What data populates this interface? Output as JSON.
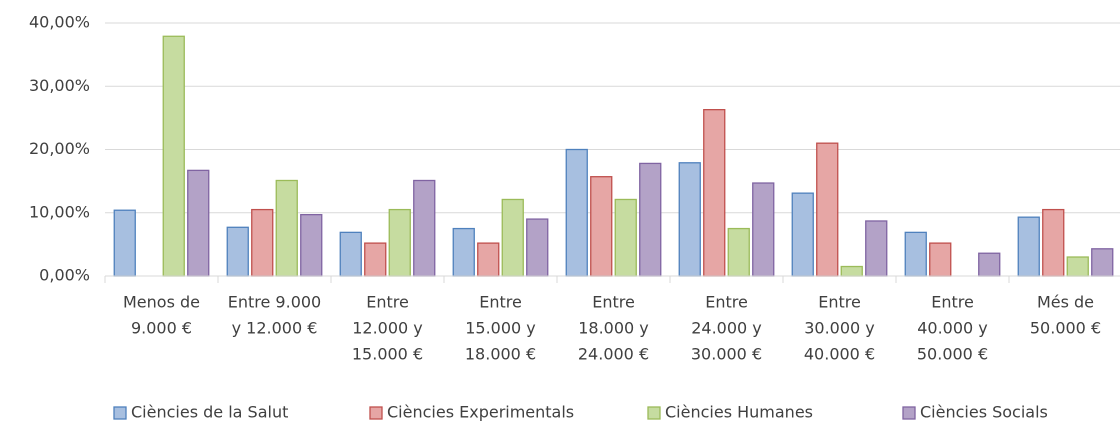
{
  "chart_data": {
    "type": "bar",
    "categories": [
      [
        "Menos de",
        "9.000 €"
      ],
      [
        "Entre 9.000",
        "y 12.000 €"
      ],
      [
        "Entre",
        "12.000 y",
        "15.000 €"
      ],
      [
        "Entre",
        "15.000 y",
        "18.000 €"
      ],
      [
        "Entre",
        "18.000 y",
        "24.000 €"
      ],
      [
        "Entre",
        "24.000 y",
        "30.000 €"
      ],
      [
        "Entre",
        "30.000 y",
        "40.000 €"
      ],
      [
        "Entre",
        "40.000 y",
        "50.000 €"
      ],
      [
        "Més de",
        "50.000 €"
      ]
    ],
    "series": [
      {
        "name": "Ciències de la Salut",
        "color": "#a7bfe0",
        "edge": "#4f81bd",
        "values": [
          10.4,
          7.7,
          6.9,
          7.5,
          20.0,
          17.9,
          13.1,
          6.9,
          9.3
        ]
      },
      {
        "name": "Ciències Experimentals",
        "color": "#e6a6a5",
        "edge": "#c0504d",
        "values": [
          0,
          10.5,
          5.2,
          5.2,
          15.7,
          26.3,
          21.0,
          5.2,
          10.5
        ]
      },
      {
        "name": "Ciències Humanes",
        "color": "#c6dca0",
        "edge": "#9bbb59",
        "values": [
          37.9,
          15.1,
          10.5,
          12.1,
          12.1,
          7.5,
          1.5,
          0,
          3.0
        ]
      },
      {
        "name": "Ciències Socials",
        "color": "#b3a2c7",
        "edge": "#8064a2",
        "values": [
          16.7,
          9.7,
          15.1,
          9.0,
          17.8,
          14.7,
          8.7,
          3.6,
          4.3
        ]
      }
    ],
    "ylim": [
      0,
      40
    ],
    "yticks": [
      {
        "value": 0,
        "label": "0,00%"
      },
      {
        "value": 10,
        "label": "10,00%"
      },
      {
        "value": 20,
        "label": "20,00%"
      },
      {
        "value": 30,
        "label": "30,00%"
      },
      {
        "value": 40,
        "label": "40,00%"
      }
    ],
    "grid": true,
    "legend": "bottom"
  }
}
